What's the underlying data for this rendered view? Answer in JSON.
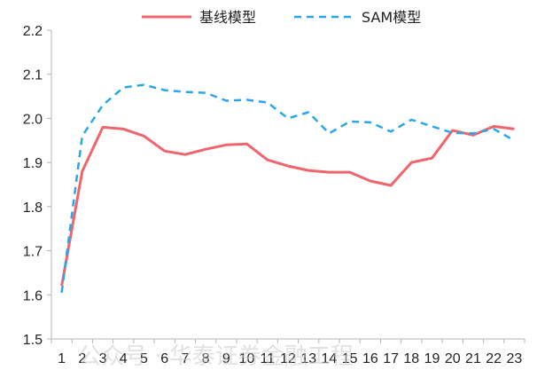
{
  "chart_data": {
    "type": "line",
    "title": "",
    "xlabel": "",
    "ylabel": "",
    "x": [
      1,
      2,
      3,
      4,
      5,
      6,
      7,
      8,
      9,
      10,
      11,
      12,
      13,
      14,
      15,
      16,
      17,
      18,
      19,
      20,
      21,
      22,
      23
    ],
    "ylim": [
      1.5,
      2.2
    ],
    "yticks": [
      "1.5",
      "1.6",
      "1.7",
      "1.8",
      "1.9",
      "2.0",
      "2.1",
      "2.2"
    ],
    "legend_position": "top",
    "grid": false,
    "series": [
      {
        "name": "基线模型",
        "color": "#f0646c",
        "style": "solid",
        "values": [
          1.62,
          1.88,
          1.98,
          1.976,
          1.96,
          1.926,
          1.918,
          1.93,
          1.94,
          1.942,
          1.906,
          1.892,
          1.882,
          1.878,
          1.878,
          1.858,
          1.848,
          1.9,
          1.91,
          1.973,
          1.962,
          1.982,
          1.976
        ]
      },
      {
        "name": "SAM模型",
        "color": "#2aa7e8",
        "style": "dashed",
        "values": [
          1.605,
          1.96,
          2.03,
          2.07,
          2.076,
          2.064,
          2.06,
          2.058,
          2.04,
          2.042,
          2.036,
          2.0,
          2.014,
          1.966,
          1.993,
          1.991,
          1.97,
          1.997,
          1.982,
          1.967,
          1.966,
          1.976,
          1.95
        ]
      }
    ]
  },
  "watermark": "公众号 · 华泰证券金融工程"
}
